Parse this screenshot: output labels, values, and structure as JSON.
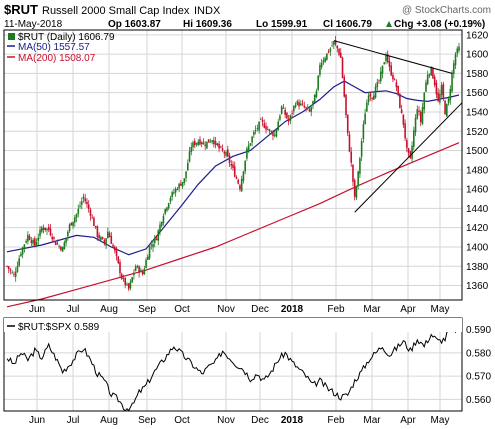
{
  "header": {
    "symbol": "$RUT",
    "name": "Russell 2000 Small Cap Index",
    "exchange": "INDX",
    "source": "@ StockCharts.com",
    "date": "11-May-2018",
    "open": "Op 1603.87",
    "high": "Hi 1609.36",
    "low": "Lo 1599.91",
    "close": "Cl 1606.79",
    "change": "Chg +3.08 (+0.19%)",
    "change_arrow": "triangle-up-icon"
  },
  "legend": {
    "price": "$RUT (Daily) 1606.79",
    "ma50": "MA(50) 1557.57",
    "ma200": "MA(200) 1508.07"
  },
  "lower_legend": "$RUT:$SPX 0.589",
  "colors": {
    "up": "#1e7a1e",
    "down": "#c8102e",
    "ma50": "#1c1c8c",
    "ma200": "#c8102e",
    "ratio": "#000000",
    "grid": "#d6d6d6"
  },
  "chart_data": [
    {
      "type": "candlestick",
      "title": "$RUT Russell 2000 Small Cap Index",
      "x_labels": [
        "Jun",
        "Jul",
        "Aug",
        "Sep",
        "Oct",
        "Nov",
        "Dec",
        "2018",
        "Feb",
        "Mar",
        "Apr",
        "May"
      ],
      "y_ticks": [
        1360,
        1380,
        1400,
        1420,
        1440,
        1460,
        1480,
        1500,
        1520,
        1540,
        1560,
        1580,
        1600,
        1620
      ],
      "ylim": [
        1345,
        1625
      ],
      "close_path": [
        [
          0,
          1380
        ],
        [
          4,
          1370
        ],
        [
          8,
          1395
        ],
        [
          12,
          1412
        ],
        [
          16,
          1402
        ],
        [
          20,
          1420
        ],
        [
          24,
          1418
        ],
        [
          28,
          1404
        ],
        [
          32,
          1398
        ],
        [
          36,
          1422
        ],
        [
          40,
          1434
        ],
        [
          44,
          1452
        ],
        [
          48,
          1435
        ],
        [
          52,
          1412
        ],
        [
          56,
          1404
        ],
        [
          58,
          1416
        ],
        [
          62,
          1395
        ],
        [
          66,
          1368
        ],
        [
          70,
          1356
        ],
        [
          74,
          1380
        ],
        [
          78,
          1372
        ],
        [
          82,
          1400
        ],
        [
          86,
          1410
        ],
        [
          90,
          1435
        ],
        [
          94,
          1452
        ],
        [
          98,
          1462
        ],
        [
          102,
          1470
        ],
        [
          106,
          1505
        ],
        [
          110,
          1510
        ],
        [
          114,
          1507
        ],
        [
          118,
          1512
        ],
        [
          122,
          1502
        ],
        [
          126,
          1496
        ],
        [
          130,
          1480
        ],
        [
          134,
          1462
        ],
        [
          138,
          1500
        ],
        [
          142,
          1518
        ],
        [
          146,
          1530
        ],
        [
          150,
          1522
        ],
        [
          154,
          1516
        ],
        [
          158,
          1545
        ],
        [
          162,
          1530
        ],
        [
          166,
          1550
        ],
        [
          170,
          1546
        ],
        [
          174,
          1540
        ],
        [
          178,
          1560
        ],
        [
          180,
          1590
        ],
        [
          184,
          1600
        ],
        [
          188,
          1612
        ],
        [
          190,
          1606
        ],
        [
          192,
          1596
        ],
        [
          194,
          1556
        ],
        [
          196,
          1516
        ],
        [
          198,
          1486
        ],
        [
          200,
          1450
        ],
        [
          202,
          1476
        ],
        [
          204,
          1510
        ],
        [
          206,
          1540
        ],
        [
          208,
          1560
        ],
        [
          210,
          1556
        ],
        [
          214,
          1572
        ],
        [
          218,
          1600
        ],
        [
          220,
          1585
        ],
        [
          222,
          1576
        ],
        [
          224,
          1566
        ],
        [
          226,
          1546
        ],
        [
          228,
          1528
        ],
        [
          230,
          1500
        ],
        [
          232,
          1490
        ],
        [
          234,
          1520
        ],
        [
          236,
          1545
        ],
        [
          238,
          1530
        ],
        [
          240,
          1560
        ],
        [
          242,
          1580
        ],
        [
          244,
          1584
        ],
        [
          246,
          1570
        ],
        [
          248,
          1550
        ],
        [
          250,
          1565
        ],
        [
          252,
          1540
        ],
        [
          254,
          1552
        ],
        [
          256,
          1580
        ],
        [
          258,
          1600
        ],
        [
          260,
          1606
        ]
      ],
      "ma50": [
        [
          0,
          1395
        ],
        [
          20,
          1402
        ],
        [
          40,
          1412
        ],
        [
          50,
          1410
        ],
        [
          60,
          1400
        ],
        [
          70,
          1392
        ],
        [
          80,
          1398
        ],
        [
          90,
          1420
        ],
        [
          100,
          1442
        ],
        [
          110,
          1465
        ],
        [
          120,
          1484
        ],
        [
          130,
          1494
        ],
        [
          140,
          1500
        ],
        [
          150,
          1515
        ],
        [
          160,
          1530
        ],
        [
          170,
          1540
        ],
        [
          180,
          1553
        ],
        [
          188,
          1566
        ],
        [
          194,
          1572
        ],
        [
          200,
          1566
        ],
        [
          206,
          1560
        ],
        [
          212,
          1561
        ],
        [
          218,
          1562
        ],
        [
          224,
          1559
        ],
        [
          230,
          1554
        ],
        [
          236,
          1552
        ],
        [
          242,
          1551
        ],
        [
          248,
          1553
        ],
        [
          254,
          1555
        ],
        [
          260,
          1557.6
        ]
      ],
      "ma200": [
        [
          0,
          1338
        ],
        [
          20,
          1346
        ],
        [
          40,
          1356
        ],
        [
          60,
          1366
        ],
        [
          80,
          1376
        ],
        [
          100,
          1388
        ],
        [
          120,
          1400
        ],
        [
          140,
          1415
        ],
        [
          160,
          1430
        ],
        [
          180,
          1445
        ],
        [
          200,
          1462
        ],
        [
          220,
          1478
        ],
        [
          240,
          1493
        ],
        [
          260,
          1508.1
        ]
      ],
      "trendlines": [
        {
          "from": [
            188,
            1614
          ],
          "to": [
            256,
            1580
          ]
        },
        {
          "from": [
            200,
            1436
          ],
          "to": [
            262,
            1550
          ]
        }
      ],
      "legend": [
        "$RUT (Daily) 1606.79",
        "MA(50) 1557.57",
        "MA(200) 1508.07"
      ]
    },
    {
      "type": "line",
      "title": "$RUT:$SPX",
      "x_labels": [
        "Jun",
        "Jul",
        "Aug",
        "Sep",
        "Oct",
        "Nov",
        "Dec",
        "2018",
        "Feb",
        "Mar",
        "Apr",
        "May"
      ],
      "y_ticks": [
        0.56,
        0.57,
        0.58,
        0.59
      ],
      "ylim": [
        0.555,
        0.595
      ],
      "series": [
        {
          "name": "$RUT:$SPX 0.589",
          "points": [
            [
              0,
              0.578
            ],
            [
              4,
              0.575
            ],
            [
              8,
              0.58
            ],
            [
              12,
              0.577
            ],
            [
              16,
              0.581
            ],
            [
              20,
              0.578
            ],
            [
              24,
              0.583
            ],
            [
              28,
              0.578
            ],
            [
              32,
              0.572
            ],
            [
              36,
              0.575
            ],
            [
              40,
              0.579
            ],
            [
              44,
              0.582
            ],
            [
              48,
              0.577
            ],
            [
              52,
              0.571
            ],
            [
              56,
              0.568
            ],
            [
              60,
              0.562
            ],
            [
              64,
              0.56
            ],
            [
              68,
              0.556
            ],
            [
              72,
              0.557
            ],
            [
              76,
              0.563
            ],
            [
              80,
              0.566
            ],
            [
              84,
              0.571
            ],
            [
              88,
              0.575
            ],
            [
              92,
              0.579
            ],
            [
              96,
              0.583
            ],
            [
              100,
              0.58
            ],
            [
              104,
              0.577
            ],
            [
              108,
              0.574
            ],
            [
              112,
              0.571
            ],
            [
              116,
              0.574
            ],
            [
              120,
              0.576
            ],
            [
              124,
              0.581
            ],
            [
              128,
              0.578
            ],
            [
              132,
              0.575
            ],
            [
              136,
              0.573
            ],
            [
              140,
              0.569
            ],
            [
              144,
              0.571
            ],
            [
              148,
              0.568
            ],
            [
              152,
              0.572
            ],
            [
              156,
              0.577
            ],
            [
              160,
              0.58
            ],
            [
              164,
              0.576
            ],
            [
              168,
              0.573
            ],
            [
              172,
              0.57
            ],
            [
              176,
              0.566
            ],
            [
              180,
              0.568
            ],
            [
              184,
              0.565
            ],
            [
              188,
              0.563
            ],
            [
              192,
              0.561
            ],
            [
              196,
              0.562
            ],
            [
              200,
              0.568
            ],
            [
              204,
              0.572
            ],
            [
              208,
              0.577
            ],
            [
              212,
              0.58
            ],
            [
              216,
              0.583
            ],
            [
              220,
              0.579
            ],
            [
              224,
              0.582
            ],
            [
              228,
              0.585
            ],
            [
              232,
              0.581
            ],
            [
              236,
              0.586
            ],
            [
              240,
              0.583
            ],
            [
              244,
              0.588
            ],
            [
              248,
              0.585
            ],
            [
              252,
              0.586
            ],
            [
              256,
              0.593
            ],
            [
              258,
              0.59
            ],
            [
              260,
              0.589
            ]
          ]
        }
      ]
    }
  ]
}
